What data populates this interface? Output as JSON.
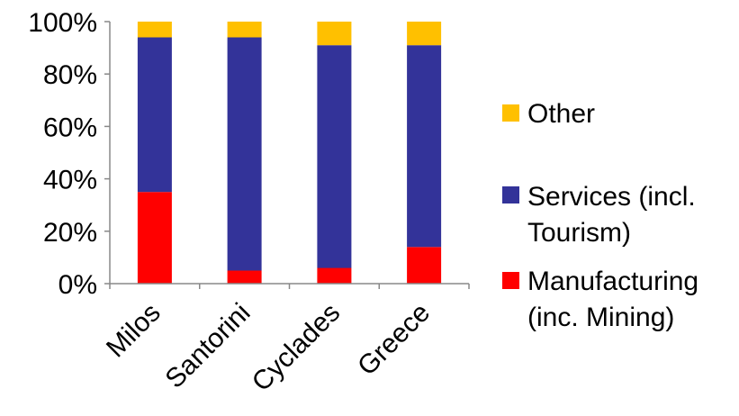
{
  "chart_data": {
    "type": "bar",
    "stacked": true,
    "percent": true,
    "categories": [
      "Milos",
      "Santorini",
      "Cyclades",
      "Greece"
    ],
    "series": [
      {
        "name": "Manufacturing (inc. Mining)",
        "label_lines": [
          "Manufacturing",
          "(inc. Mining)"
        ],
        "color": "#ff0000",
        "values": [
          35,
          5,
          6,
          14
        ]
      },
      {
        "name": "Services (incl. Tourism)",
        "label_lines": [
          "Services (incl.",
          "Tourism)"
        ],
        "color": "#333399",
        "values": [
          59,
          89,
          85,
          77
        ]
      },
      {
        "name": "Other",
        "label_lines": [
          "Other"
        ],
        "color": "#ffc000",
        "values": [
          6,
          6,
          9,
          9
        ]
      }
    ],
    "ylim": [
      0,
      100
    ],
    "yticks": [
      "0%",
      "20%",
      "40%",
      "60%",
      "80%",
      "100%"
    ],
    "grid": false,
    "legend": "right",
    "title": "",
    "xlabel": "",
    "ylabel": ""
  }
}
